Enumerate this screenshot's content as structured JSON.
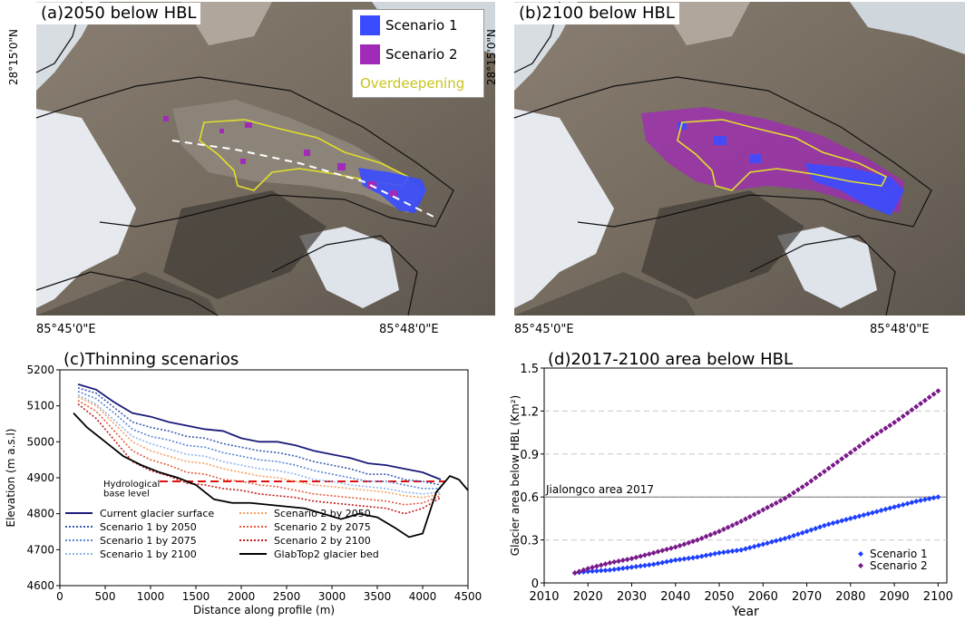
{
  "map_a": {
    "title": "(a)2050 below HBL",
    "lat_label": "28°15'0\"N",
    "lon_left": "85°45'0\"E",
    "lon_right": "85°48'0\"E",
    "legend": [
      {
        "label": "Scenario 1",
        "color": "#3a4cff"
      },
      {
        "label": "Scenario 2",
        "color": "#a12ab8"
      },
      {
        "label": "Overdeepening",
        "color": "#d9d92a"
      }
    ]
  },
  "map_b": {
    "title": "(b)2100 below HBL",
    "lat_label": "28°15'0\"N",
    "lon_left": "85°45'0\"E",
    "lon_right": "85°48'0\"E"
  },
  "chart_data": [
    {
      "type": "line",
      "title": "(c)Thinning scenarios",
      "xlabel": "Distance along profile (m)",
      "ylabel": "Elevation (m a.s.l)",
      "xlim": [
        0,
        4500
      ],
      "ylim": [
        4600,
        5200
      ],
      "xticks": [
        0,
        500,
        1000,
        1500,
        2000,
        2500,
        3000,
        3500,
        4000,
        4500
      ],
      "yticks": [
        4600,
        4700,
        4800,
        4900,
        5000,
        5100,
        5200
      ],
      "hbl_value": 4890,
      "hbl_label_line1": "Hydrological",
      "hbl_label_line2": "base level",
      "legend_placement": "bottom-left",
      "series": [
        {
          "name": "Current glacier surface",
          "color": "#1b1b7a",
          "style": "solid",
          "x": [
            200,
            400,
            600,
            800,
            1000,
            1200,
            1400,
            1600,
            1800,
            2000,
            2200,
            2400,
            2600,
            2800,
            3000,
            3200,
            3400,
            3600,
            3800,
            4000,
            4200
          ],
          "y": [
            5160,
            5145,
            5110,
            5080,
            5070,
            5055,
            5045,
            5035,
            5030,
            5010,
            5000,
            5000,
            4990,
            4975,
            4965,
            4955,
            4940,
            4935,
            4925,
            4915,
            4895
          ]
        },
        {
          "name": "Scenario 1 by 2050",
          "color": "#3b5bb0",
          "style": "dotted",
          "x": [
            200,
            400,
            600,
            800,
            1000,
            1200,
            1400,
            1600,
            1800,
            2000,
            2200,
            2400,
            2600,
            2800,
            3000,
            3200,
            3400,
            3600,
            3800,
            4000,
            4200
          ],
          "y": [
            5150,
            5135,
            5095,
            5055,
            5040,
            5030,
            5015,
            5010,
            4995,
            4985,
            4975,
            4970,
            4960,
            4945,
            4935,
            4925,
            4910,
            4910,
            4895,
            4890,
            4880
          ]
        },
        {
          "name": "Scenario 1 by 2075",
          "color": "#5a86d6",
          "style": "dotted",
          "x": [
            200,
            400,
            600,
            800,
            1000,
            1200,
            1400,
            1600,
            1800,
            2000,
            2200,
            2400,
            2600,
            2800,
            3000,
            3200,
            3400,
            3600,
            3800,
            4000,
            4200
          ],
          "y": [
            5140,
            5120,
            5080,
            5035,
            5015,
            5005,
            4990,
            4985,
            4970,
            4960,
            4950,
            4945,
            4935,
            4920,
            4910,
            4900,
            4890,
            4890,
            4880,
            4870,
            4870
          ]
        },
        {
          "name": "Scenario 1 by 2100",
          "color": "#8fb4ea",
          "style": "dotted",
          "x": [
            200,
            400,
            600,
            800,
            1000,
            1200,
            1400,
            1600,
            1800,
            2000,
            2200,
            2400,
            2600,
            2800,
            3000,
            3200,
            3400,
            3600,
            3800,
            4000,
            4200
          ],
          "y": [
            5130,
            5105,
            5060,
            5015,
            4995,
            4980,
            4965,
            4960,
            4945,
            4935,
            4925,
            4920,
            4910,
            4895,
            4890,
            4880,
            4875,
            4870,
            4860,
            4855,
            4860
          ]
        },
        {
          "name": "Scenario 2 by 2050",
          "color": "#f5a060",
          "style": "dotted",
          "x": [
            200,
            400,
            600,
            800,
            1000,
            1200,
            1400,
            1600,
            1800,
            2000,
            2200,
            2400,
            2600,
            2800,
            3000,
            3200,
            3400,
            3600,
            3800,
            4000,
            4200
          ],
          "y": [
            5125,
            5100,
            5050,
            5000,
            4975,
            4960,
            4945,
            4940,
            4925,
            4915,
            4905,
            4900,
            4890,
            4880,
            4875,
            4870,
            4865,
            4860,
            4850,
            4845,
            4855
          ]
        },
        {
          "name": "Scenario 2 by 2075",
          "color": "#e65a3c",
          "style": "dotted",
          "x": [
            200,
            400,
            600,
            800,
            1000,
            1200,
            1400,
            1600,
            1800,
            2000,
            2200,
            2400,
            2600,
            2800,
            3000,
            3200,
            3400,
            3600,
            3800,
            4000,
            4200
          ],
          "y": [
            5115,
            5085,
            5030,
            4975,
            4950,
            4935,
            4915,
            4910,
            4895,
            4890,
            4880,
            4875,
            4865,
            4855,
            4850,
            4845,
            4840,
            4835,
            4825,
            4830,
            4850
          ]
        },
        {
          "name": "Scenario 2 by 2100",
          "color": "#c21a1a",
          "style": "dotted",
          "x": [
            200,
            400,
            600,
            800,
            1000,
            1200,
            1400,
            1600,
            1800,
            2000,
            2200,
            2400,
            2600,
            2800,
            3000,
            3200,
            3400,
            3600,
            3800,
            4000,
            4200
          ],
          "y": [
            5105,
            5065,
            5005,
            4945,
            4920,
            4905,
            4885,
            4880,
            4870,
            4865,
            4855,
            4850,
            4845,
            4835,
            4830,
            4825,
            4820,
            4815,
            4800,
            4815,
            4845
          ]
        },
        {
          "name": "GlabTop2 glacier bed",
          "color": "#000000",
          "style": "solid",
          "x": [
            150,
            300,
            500,
            700,
            900,
            1100,
            1300,
            1500,
            1700,
            1900,
            2100,
            2300,
            2500,
            2700,
            2900,
            3100,
            3300,
            3500,
            3700,
            3850,
            4000,
            4150,
            4300,
            4400,
            4500
          ],
          "y": [
            5080,
            5040,
            5000,
            4960,
            4935,
            4915,
            4900,
            4880,
            4840,
            4830,
            4830,
            4825,
            4820,
            4815,
            4800,
            4785,
            4800,
            4790,
            4760,
            4735,
            4745,
            4860,
            4905,
            4895,
            4865
          ]
        }
      ]
    },
    {
      "type": "scatter",
      "title": "(d)2017-2100 area below HBL",
      "xlabel": "Year",
      "ylabel": "Glacier area below HBL (Km²)",
      "xlim": [
        2010,
        2102
      ],
      "ylim": [
        0,
        1.5
      ],
      "xticks": [
        2010,
        2020,
        2030,
        2040,
        2050,
        2060,
        2070,
        2080,
        2090,
        2100
      ],
      "yticks": [
        0,
        0.3,
        0.6,
        0.9,
        1.2,
        1.5
      ],
      "ytick_labels": [
        "0",
        "0.3",
        "0.6",
        "0.9",
        "1.2",
        "1.5"
      ],
      "grid": "horizontal dashed",
      "reference_value": 0.6,
      "reference_label": "Jialongco area 2017",
      "legend_placement": "bottom-right",
      "x": [
        2017,
        2020,
        2025,
        2030,
        2035,
        2040,
        2045,
        2050,
        2055,
        2060,
        2065,
        2070,
        2075,
        2080,
        2085,
        2090,
        2095,
        2100
      ],
      "series": [
        {
          "name": "Scenario 1",
          "color": "#1f3fff",
          "y": [
            0.07,
            0.08,
            0.09,
            0.11,
            0.13,
            0.16,
            0.18,
            0.21,
            0.23,
            0.27,
            0.31,
            0.36,
            0.41,
            0.45,
            0.49,
            0.53,
            0.57,
            0.6
          ]
        },
        {
          "name": "Scenario 2",
          "color": "#7a1a8a",
          "y": [
            0.07,
            0.1,
            0.14,
            0.17,
            0.21,
            0.25,
            0.3,
            0.36,
            0.43,
            0.51,
            0.59,
            0.69,
            0.8,
            0.91,
            1.02,
            1.12,
            1.23,
            1.34
          ]
        }
      ]
    }
  ]
}
